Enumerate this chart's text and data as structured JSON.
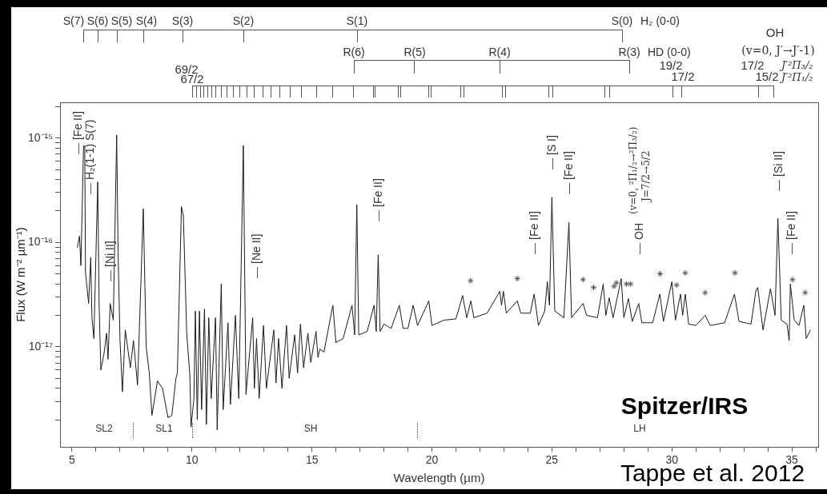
{
  "chart_data": {
    "type": "line",
    "xlabel": "Wavelength (µm)",
    "ylabel": "Flux (W m⁻² µm⁻¹)",
    "log": "y",
    "grid": false,
    "legend": false,
    "xlim": [
      4.5,
      36.1
    ],
    "xticks": [
      5,
      {
        "value": 6,
        "label": null
      },
      {
        "value": 7,
        "label": null
      },
      {
        "value": 8,
        "label": null
      },
      {
        "value": 9,
        "label": null
      },
      10,
      {
        "value": 11,
        "label": null
      },
      {
        "value": 12,
        "label": null
      },
      {
        "value": 13,
        "label": null
      },
      {
        "value": 14,
        "label": null
      },
      15,
      {
        "value": 16,
        "label": null
      },
      {
        "value": 17,
        "label": null
      },
      {
        "value": 18,
        "label": null
      },
      {
        "value": 19,
        "label": null
      },
      20,
      {
        "value": 21,
        "label": null
      },
      {
        "value": 22,
        "label": null
      },
      {
        "value": 23,
        "label": null
      },
      {
        "value": 24,
        "label": null
      },
      25,
      {
        "value": 26,
        "label": null
      },
      {
        "value": 27,
        "label": null
      },
      {
        "value": 28,
        "label": null
      },
      {
        "value": 29,
        "label": null
      },
      30,
      {
        "value": 31,
        "label": null
      },
      {
        "value": 32,
        "label": null
      },
      {
        "value": 33,
        "label": null
      },
      {
        "value": 34,
        "label": null
      },
      35,
      {
        "value": 36,
        "label": null
      }
    ],
    "ylim": [
      1.1e-18,
      2.2e-15
    ],
    "yticks": [
      {
        "value": 2e-18,
        "label": null
      },
      {
        "value": 3e-18,
        "label": null
      },
      {
        "value": 4e-18,
        "label": null
      },
      {
        "value": 5e-18,
        "label": null
      },
      {
        "value": 6e-18,
        "label": null
      },
      {
        "value": 7e-18,
        "label": null
      },
      {
        "value": 8e-18,
        "label": null
      },
      {
        "value": 9e-18,
        "label": null
      },
      {
        "value": 1e-17,
        "label": "10⁻¹⁷"
      },
      {
        "value": 2e-17,
        "label": null
      },
      {
        "value": 3e-17,
        "label": null
      },
      {
        "value": 4e-17,
        "label": null
      },
      {
        "value": 5e-17,
        "label": null
      },
      {
        "value": 6e-17,
        "label": null
      },
      {
        "value": 7e-17,
        "label": null
      },
      {
        "value": 8e-17,
        "label": null
      },
      {
        "value": 9e-17,
        "label": null
      },
      {
        "value": 1e-16,
        "label": "10⁻¹⁶"
      },
      {
        "value": 2e-16,
        "label": null
      },
      {
        "value": 3e-16,
        "label": null
      },
      {
        "value": 4e-16,
        "label": null
      },
      {
        "value": 5e-16,
        "label": null
      },
      {
        "value": 6e-16,
        "label": null
      },
      {
        "value": 7e-16,
        "label": null
      },
      {
        "value": 8e-16,
        "label": null
      },
      {
        "value": 9e-16,
        "label": null
      },
      {
        "value": 1e-15,
        "label": "10⁻¹⁵"
      },
      {
        "value": 2e-15,
        "label": null
      }
    ],
    "series": [
      {
        "type": "line",
        "color": "#1a1a1a",
        "x": [
          5.22,
          5.31,
          5.37,
          5.48,
          5.53,
          5.56,
          5.69,
          5.78,
          5.83,
          5.91,
          6.07,
          6.13,
          6.2,
          6.33,
          6.44,
          6.5,
          6.59,
          6.72,
          6.86,
          6.92,
          7.0,
          7.1,
          7.22,
          7.43,
          7.56,
          7.73,
          7.97,
          8.09,
          8.22,
          8.33,
          8.56,
          8.77,
          9.0,
          9.16,
          9.33,
          9.39,
          9.56,
          9.64,
          9.78,
          9.91,
          9.96,
          10.08,
          10.14,
          10.22,
          10.31,
          10.4,
          10.52,
          10.6,
          10.7,
          10.8,
          10.98,
          11.05,
          11.22,
          11.3,
          11.5,
          11.6,
          11.81,
          11.95,
          12.14,
          12.25,
          12.53,
          12.6,
          12.69,
          12.8,
          12.98,
          13.1,
          13.41,
          13.5,
          13.61,
          13.75,
          13.94,
          14.05,
          14.28,
          14.4,
          14.52,
          14.65,
          14.83,
          14.95,
          15.17,
          15.25,
          15.33,
          15.5,
          15.87,
          16.0,
          16.3,
          16.67,
          16.78,
          16.87,
          16.95,
          17.3,
          17.59,
          17.68,
          17.76,
          17.84,
          18.0,
          18.3,
          18.64,
          18.8,
          19.0,
          19.22,
          19.4,
          19.87,
          20.0,
          20.5,
          21.0,
          21.28,
          21.45,
          21.62,
          21.75,
          22.3,
          22.83,
          22.9,
          22.98,
          23.1,
          23.56,
          23.7,
          24.1,
          24.26,
          24.44,
          24.7,
          24.81,
          24.9,
          25.0,
          25.12,
          25.5,
          25.71,
          25.82,
          26.3,
          26.45,
          26.9,
          27.14,
          27.25,
          27.39,
          27.55,
          27.89,
          28.0,
          28.19,
          28.35,
          28.62,
          28.75,
          29.2,
          29.5,
          29.65,
          30.0,
          30.15,
          30.36,
          30.45,
          30.56,
          30.7,
          31.0,
          31.39,
          31.6,
          32.2,
          32.61,
          32.8,
          33.3,
          33.5,
          33.58,
          33.8,
          34.11,
          34.3,
          34.42,
          34.56,
          34.8,
          34.89,
          34.94,
          35.1,
          35.3,
          35.5,
          35.6,
          35.78
        ],
        "values": [
          8.9e-17,
          1.15e-16,
          6e-17,
          8.5e-16,
          8.3e-16,
          5.2e-17,
          2.6e-17,
          7.2e-17,
          1.9e-17,
          1.2e-17,
          3.8e-16,
          2.5e-17,
          6e-18,
          8.5e-18,
          1.35e-17,
          7.6e-18,
          2.6e-17,
          1.8e-17,
          1.07e-15,
          7.9e-17,
          1.15e-17,
          3.7e-18,
          1.45e-17,
          6.3e-18,
          1.15e-17,
          4.3e-18,
          2.1e-16,
          1e-17,
          5.6e-18,
          2.2e-18,
          4.7e-18,
          4e-18,
          2.1e-18,
          2.2e-18,
          5e-18,
          5.6e-18,
          2.2e-16,
          1.8e-16,
          1.35e-17,
          5.4e-18,
          1.7e-18,
          3.2e-18,
          2.2e-17,
          2e-18,
          2.2e-17,
          2.5e-18,
          2.3e-17,
          1.8e-18,
          1.9e-17,
          3.2e-18,
          1.9e-17,
          1.6e-18,
          4e-17,
          2.5e-18,
          1.7e-17,
          2.8e-18,
          2e-17,
          3.2e-18,
          8.5e-16,
          3.5e-18,
          1.9e-17,
          4e-18,
          1.2e-17,
          3.2e-18,
          1.6e-17,
          4e-18,
          1.45e-17,
          4.5e-18,
          1.2e-17,
          4e-18,
          1.6e-17,
          5e-18,
          1.3e-17,
          5.6e-18,
          1.65e-17,
          6.3e-18,
          1.35e-17,
          7.1e-18,
          1.4e-17,
          7.9e-18,
          9.5e-18,
          8.9e-18,
          2.5e-17,
          1.1e-17,
          1.2e-17,
          2.5e-17,
          1.3e-17,
          2.3e-16,
          1.3e-17,
          1.4e-17,
          2.5e-17,
          1.4e-17,
          7.6e-17,
          1.4e-17,
          1.65e-17,
          1.5e-17,
          2.5e-17,
          1.5e-17,
          1.5e-17,
          2.5e-17,
          1.6e-17,
          2.75e-17,
          1.6e-17,
          1.8e-17,
          1.85e-17,
          3.1e-17,
          1.9e-17,
          2.75e-17,
          1.9e-17,
          2.1e-17,
          3.4e-17,
          2.5e-17,
          3.4e-17,
          2.1e-17,
          2.75e-17,
          2.1e-17,
          2.1e-17,
          3.2e-17,
          1.6e-17,
          2.2e-17,
          4.2e-17,
          2.5e-17,
          2.7e-16,
          2.2e-17,
          1.9e-17,
          1.55e-16,
          1.9e-17,
          2.6e-17,
          2e-17,
          1.9e-17,
          4e-17,
          2e-17,
          2.95e-17,
          1.9e-17,
          4.5e-17,
          1.9e-17,
          2.9e-17,
          1.75e-17,
          2.6e-17,
          1.7e-17,
          1.7e-17,
          3.2e-17,
          1.75e-17,
          4.2e-17,
          1.8e-17,
          3.2e-17,
          2e-17,
          3.2e-17,
          1.65e-17,
          1.6e-17,
          2e-17,
          1.6e-17,
          1.7e-17,
          3.2e-17,
          1.75e-17,
          1.65e-17,
          3.4e-17,
          3.7e-17,
          1.45e-17,
          3.6e-17,
          2e-17,
          1.7e-16,
          1.8e-17,
          1.65e-17,
          1.15e-17,
          4e-17,
          1.8e-17,
          1.6e-17,
          2.5e-17,
          1.2e-17,
          1.45e-17
        ]
      },
      {
        "type": "scatter",
        "color": "#555555",
        "marker": "cross",
        "x": [
          21.61,
          23.56,
          26.3,
          26.74,
          27.59,
          27.69,
          28.11,
          28.28,
          29.51,
          30.2,
          30.56,
          31.39,
          32.63,
          35.03,
          35.56
        ],
        "values": [
          4.3e-17,
          4.5e-17,
          4.4e-17,
          3.7e-17,
          3.8e-17,
          4.1e-17,
          4e-17,
          4e-17,
          5e-17,
          3.9e-17,
          5.1e-17,
          3.3e-17,
          5.1e-17,
          4.4e-17,
          3.3e-17
        ]
      }
    ],
    "annotations": [
      "S(7)",
      "S(6)",
      "S(5)",
      "S(4)",
      "S(3)",
      "S(2)",
      "S(1)",
      "S(0)",
      "R(6)",
      "R(5)",
      "R(4)",
      "R(3)",
      "69/2",
      "67/2",
      "19/2",
      "17/2",
      "17/2",
      "15/2",
      "H₂ (0-0)",
      "HD (0-0)",
      "J′²Π₃/₂",
      "J′²Π₁/₂",
      "OH",
      "(v=0, J′→J′-1)",
      "Spitzer/IRS",
      "Tappe et al. 2012",
      "[Fe II]",
      "H₂(1-1) S(7)",
      "[Ni II]",
      "[Ne II]",
      "[Fe II]",
      "[Fe II]",
      "[S I]",
      "[Fe II]",
      "OH",
      "(v=0, ²Π₁/₂→²Π₃/₂)",
      "J=7/2→5/2",
      "[Si II]",
      "[Fe II]",
      "SL2",
      "SL1",
      "SH",
      "LH"
    ]
  }
}
